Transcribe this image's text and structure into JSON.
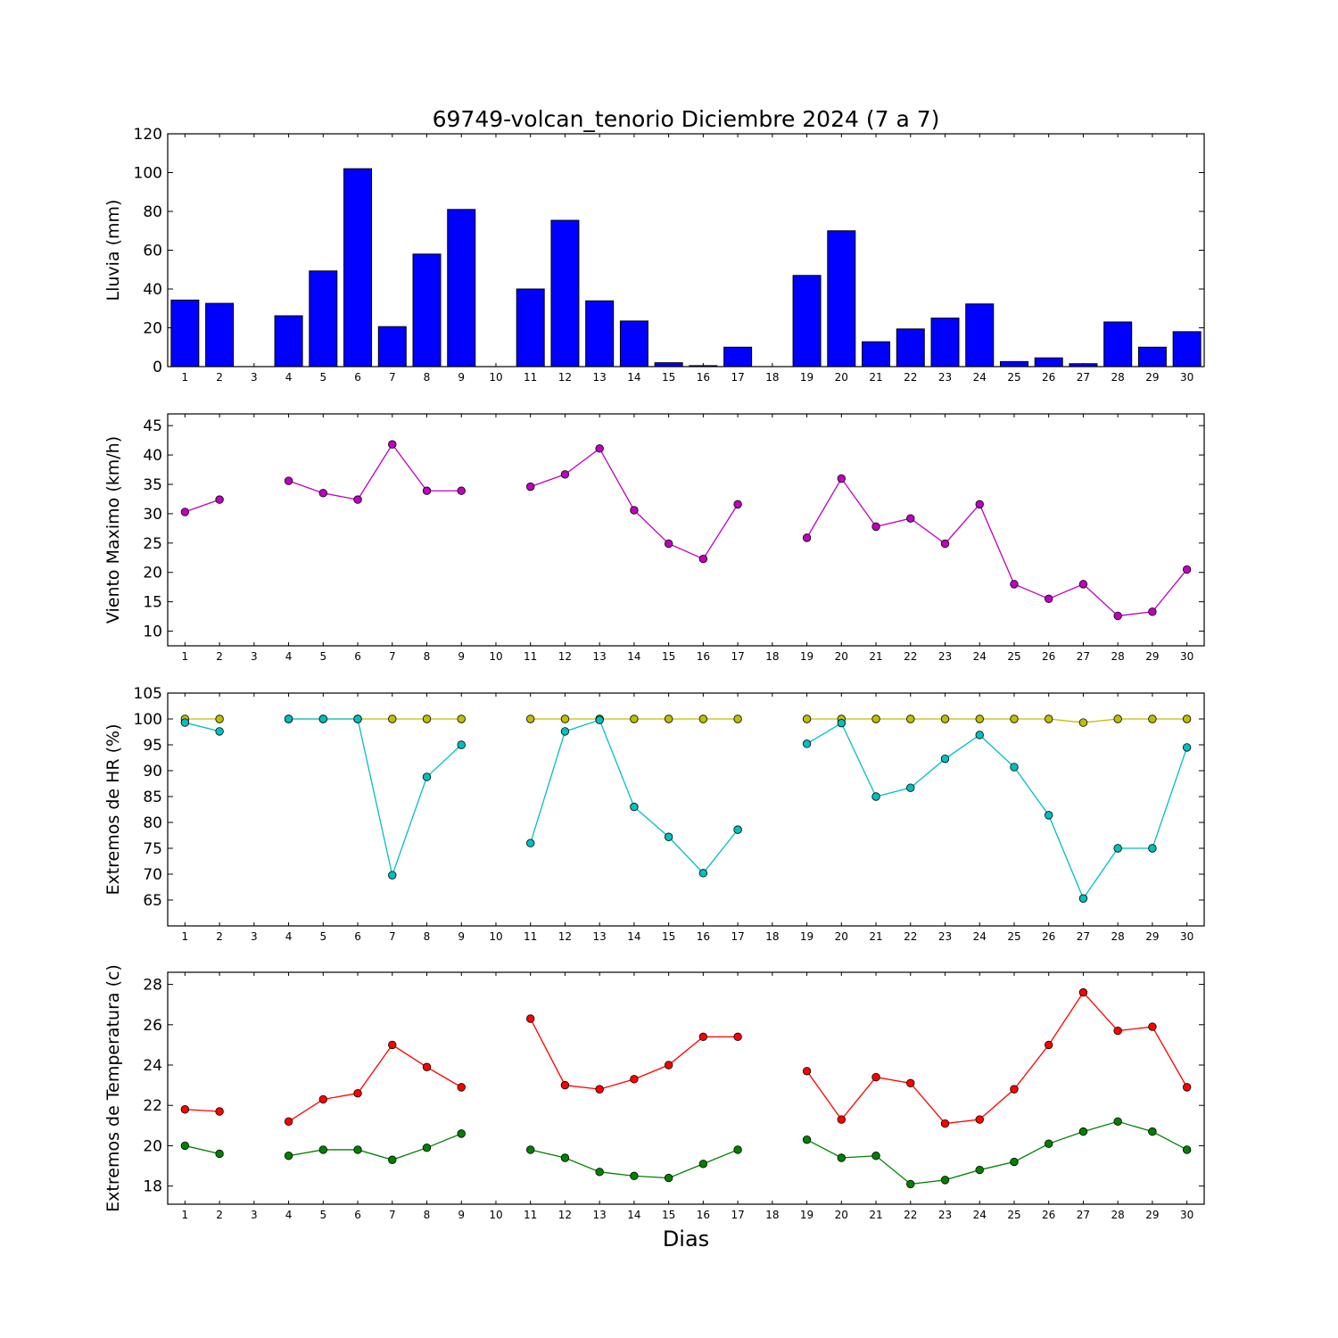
{
  "chart_data": [
    {
      "type": "bar",
      "title": "69749-volcan_tenorio Diciembre 2024  (7 a 7)",
      "ylabel": "Lluvia (mm)",
      "ylim": [
        0,
        120
      ],
      "yticks": [
        0,
        20,
        40,
        60,
        80,
        100,
        120
      ],
      "categories": [
        "1",
        "2",
        "3",
        "4",
        "5",
        "6",
        "7",
        "8",
        "9",
        "10",
        "11",
        "12",
        "13",
        "14",
        "15",
        "16",
        "17",
        "18",
        "19",
        "20",
        "21",
        "22",
        "23",
        "24",
        "25",
        "26",
        "27",
        "28",
        "29",
        "30"
      ],
      "values": [
        34.3,
        32.6,
        0,
        26.2,
        49.3,
        102.0,
        20.6,
        58.0,
        81.0,
        0,
        40.0,
        75.4,
        33.9,
        23.5,
        2.0,
        0.5,
        10.0,
        0,
        47.0,
        70.0,
        12.8,
        19.4,
        25.0,
        32.3,
        2.6,
        4.5,
        1.5,
        23.0,
        10.0,
        18.0
      ],
      "color": "#0000ff",
      "grid": false
    },
    {
      "type": "line",
      "ylabel": "Viento Maximo (km/h)",
      "ylim": [
        7.5,
        47
      ],
      "yticks": [
        10,
        15,
        20,
        25,
        30,
        35,
        40,
        45
      ],
      "x": [
        1,
        2,
        3,
        4,
        5,
        6,
        7,
        8,
        9,
        10,
        11,
        12,
        13,
        14,
        15,
        16,
        17,
        18,
        19,
        20,
        21,
        22,
        23,
        24,
        25,
        26,
        27,
        28,
        29,
        30
      ],
      "series": [
        {
          "color": "#bf00bf",
          "values": [
            30.3,
            32.4,
            null,
            35.6,
            33.5,
            32.4,
            41.8,
            33.9,
            33.9,
            null,
            34.6,
            36.7,
            41.1,
            30.6,
            24.9,
            22.3,
            31.6,
            null,
            25.9,
            36.0,
            27.8,
            29.2,
            24.9,
            31.6,
            18.0,
            15.5,
            18.0,
            12.6,
            13.3,
            20.5
          ]
        }
      ],
      "grid": false
    },
    {
      "type": "line",
      "ylabel": "Extremos de HR (%)",
      "ylim": [
        60,
        105
      ],
      "yticks": [
        65,
        70,
        75,
        80,
        85,
        90,
        95,
        100,
        105
      ],
      "x": [
        1,
        2,
        3,
        4,
        5,
        6,
        7,
        8,
        9,
        10,
        11,
        12,
        13,
        14,
        15,
        16,
        17,
        18,
        19,
        20,
        21,
        22,
        23,
        24,
        25,
        26,
        27,
        28,
        29,
        30
      ],
      "series": [
        {
          "color": "#bfbf00",
          "values": [
            100,
            100,
            null,
            100,
            100,
            100,
            100,
            100,
            100,
            null,
            100,
            100,
            100,
            100,
            100,
            100,
            100,
            null,
            100,
            100,
            100,
            100,
            100,
            100,
            100,
            100,
            99.3,
            100,
            100,
            100
          ]
        },
        {
          "color": "#00bfbf",
          "values": [
            99.3,
            97.6,
            null,
            100,
            100,
            100,
            69.8,
            88.8,
            95.0,
            null,
            76.0,
            97.6,
            99.8,
            83.0,
            77.2,
            70.2,
            78.6,
            null,
            95.2,
            99.2,
            85.0,
            86.7,
            92.3,
            96.9,
            90.7,
            81.4,
            65.3,
            75.0,
            75.0,
            94.5
          ]
        }
      ],
      "grid": false
    },
    {
      "type": "line",
      "ylabel": "Extremos de Temperatura (c)",
      "xlabel": "Dias",
      "ylim": [
        17.1,
        28.6
      ],
      "yticks": [
        18,
        20,
        22,
        24,
        26,
        28
      ],
      "x": [
        1,
        2,
        3,
        4,
        5,
        6,
        7,
        8,
        9,
        10,
        11,
        12,
        13,
        14,
        15,
        16,
        17,
        18,
        19,
        20,
        21,
        22,
        23,
        24,
        25,
        26,
        27,
        28,
        29,
        30
      ],
      "series": [
        {
          "color": "#ff0000",
          "values": [
            21.8,
            21.7,
            null,
            21.2,
            22.3,
            22.6,
            25.0,
            23.9,
            22.9,
            null,
            26.3,
            23.0,
            22.8,
            23.3,
            24.0,
            25.4,
            25.4,
            null,
            23.7,
            21.3,
            23.4,
            23.1,
            21.1,
            21.3,
            22.8,
            25.0,
            27.6,
            25.7,
            25.9,
            22.9
          ]
        },
        {
          "color": "#008000",
          "values": [
            20.0,
            19.6,
            null,
            19.5,
            19.8,
            19.8,
            19.3,
            19.9,
            20.6,
            null,
            19.8,
            19.4,
            18.7,
            18.5,
            18.4,
            19.1,
            19.8,
            null,
            20.3,
            19.4,
            19.5,
            18.1,
            18.3,
            18.8,
            19.2,
            20.1,
            20.7,
            21.2,
            20.7,
            19.8
          ]
        }
      ],
      "grid": false
    }
  ]
}
